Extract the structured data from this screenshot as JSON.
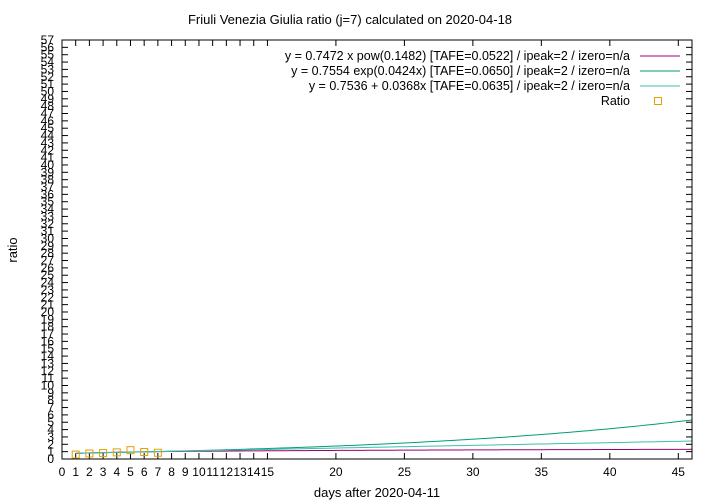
{
  "chart_data": {
    "type": "line",
    "title": "Friuli Venezia Giulia ratio (j=7) calculated on 2020-04-18",
    "xlabel": "days after 2020-04-11",
    "ylabel": "ratio",
    "xlim": [
      0,
      46
    ],
    "ylim": [
      0,
      57
    ],
    "x_ticks": [
      0,
      1,
      2,
      3,
      4,
      5,
      6,
      7,
      8,
      9,
      10,
      11,
      12,
      13,
      14,
      15,
      20,
      25,
      30,
      35,
      40,
      45
    ],
    "y_ticks": [
      0,
      1,
      2,
      3,
      4,
      5,
      6,
      7,
      8,
      9,
      10,
      11,
      12,
      13,
      14,
      15,
      16,
      17,
      18,
      19,
      20,
      21,
      22,
      23,
      24,
      25,
      26,
      27,
      28,
      29,
      30,
      31,
      32,
      33,
      34,
      35,
      36,
      37,
      38,
      39,
      40,
      41,
      42,
      43,
      44,
      45,
      46,
      47,
      48,
      49,
      50,
      51,
      52,
      53,
      54,
      55,
      56,
      57
    ],
    "legend_position": "top-right",
    "series": [
      {
        "name": "y = 0.7472 x pow(0.1482)  [TAFE=0.0522] / ipeak=2 / izero=n/a",
        "style": "line",
        "color": "#a0006e",
        "model": "power",
        "a": 0.7472,
        "b": 0.1482,
        "x_range": [
          1,
          46
        ]
      },
      {
        "name": "y = 0.7554 exp(0.0424x)  [TAFE=0.0650] / ipeak=2 / izero=n/a",
        "style": "line",
        "color": "#009e73",
        "model": "exponential",
        "a": 0.7554,
        "b": 0.0424,
        "x_range": [
          1,
          46
        ]
      },
      {
        "name": "y = 0.7536 + 0.0368x  [TAFE=0.0635] / ipeak=2 / izero=n/a",
        "style": "line",
        "color": "#3dbfb0",
        "model": "linear",
        "a": 0.7536,
        "b": 0.0368,
        "x_range": [
          1,
          46
        ]
      },
      {
        "name": "Ratio",
        "style": "points",
        "color": "#e69f00",
        "x": [
          1,
          2,
          3,
          4,
          5,
          6,
          7
        ],
        "y": [
          0.6,
          0.75,
          0.8,
          0.9,
          1.2,
          0.95,
          0.85
        ]
      }
    ]
  }
}
